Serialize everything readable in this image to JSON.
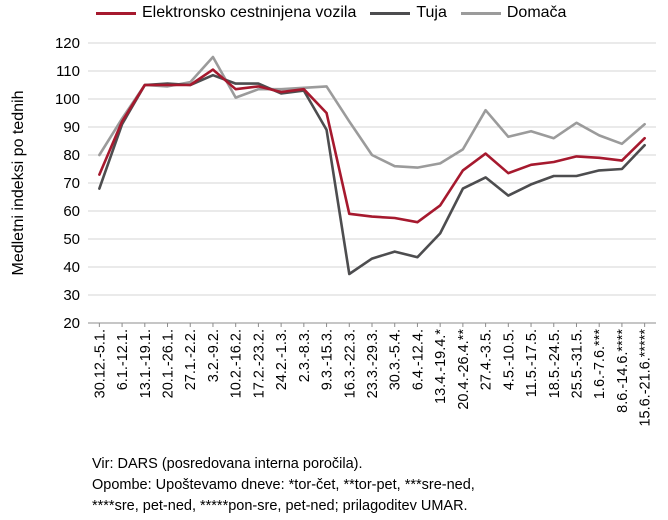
{
  "chart_data": {
    "type": "line",
    "ylabel": "Medletni indeksi po tednih",
    "ylim": [
      20,
      120
    ],
    "yticks": [
      20,
      30,
      40,
      50,
      60,
      70,
      80,
      90,
      100,
      110,
      120
    ],
    "grid": true,
    "legend_position": "top",
    "categories": [
      "30.12.-5.1.",
      "6.1.-12.1.",
      "13.1.-19.1.",
      "20.1.-26.1.",
      "27.1.-2.2.",
      "3.2.-9.2.",
      "10.2.-16.2.",
      "17.2.-23.2.",
      "24.2.-1.3.",
      "2.3.-8.3.",
      "9.3.-15.3.",
      "16.3.-22.3.",
      "23.3.-29.3.",
      "30.3.-5.4.",
      "6.4.-12.4.",
      "13.4.-19.4.*",
      "20.4.-26.4.**",
      "27.4.-3.5.",
      "4.5.-10.5.",
      "11.5.-17.5.",
      "18.5.-24.5.",
      "25.5.-31.5.",
      "1.6.-7.6.***",
      "8.6.-14.6.****",
      "15.6.-21.6.*****"
    ],
    "series": [
      {
        "name": "Elektronsko cestninjena vozila",
        "color": "#a6192e",
        "values": [
          73,
          92,
          105,
          105,
          105,
          110.5,
          103.5,
          104.5,
          102.5,
          103.5,
          95,
          59,
          58,
          57.5,
          56,
          62,
          74.5,
          80.5,
          73.5,
          76.5,
          77.5,
          79.5,
          79,
          78,
          86
        ]
      },
      {
        "name": "Tuja",
        "color": "#4d4d4f",
        "values": [
          68,
          91,
          105,
          105.5,
          105,
          108.5,
          105.5,
          105.5,
          102,
          103,
          89,
          37.5,
          43,
          45.5,
          43.5,
          52,
          68,
          72,
          65.5,
          69.5,
          72.5,
          72.5,
          74.5,
          75,
          83.5
        ]
      },
      {
        "name": "Domača",
        "color": "#9b9b9b",
        "values": [
          80,
          93,
          105,
          104.5,
          106,
          115,
          100.5,
          103.5,
          103.5,
          104,
          104.5,
          92,
          80,
          76,
          75.5,
          77,
          82,
          96,
          86.5,
          88.5,
          86,
          91.5,
          87,
          84,
          91
        ]
      }
    ]
  },
  "notes": {
    "source": "Vir: DARS (posredovana interna poročila).",
    "line1": "Opombe: Upoštevamo dneve: *tor-čet, **tor-pet, ***sre-ned,",
    "line2": "****sre, pet-ned, *****pon-sre, pet-ned; prilagoditev UMAR."
  }
}
